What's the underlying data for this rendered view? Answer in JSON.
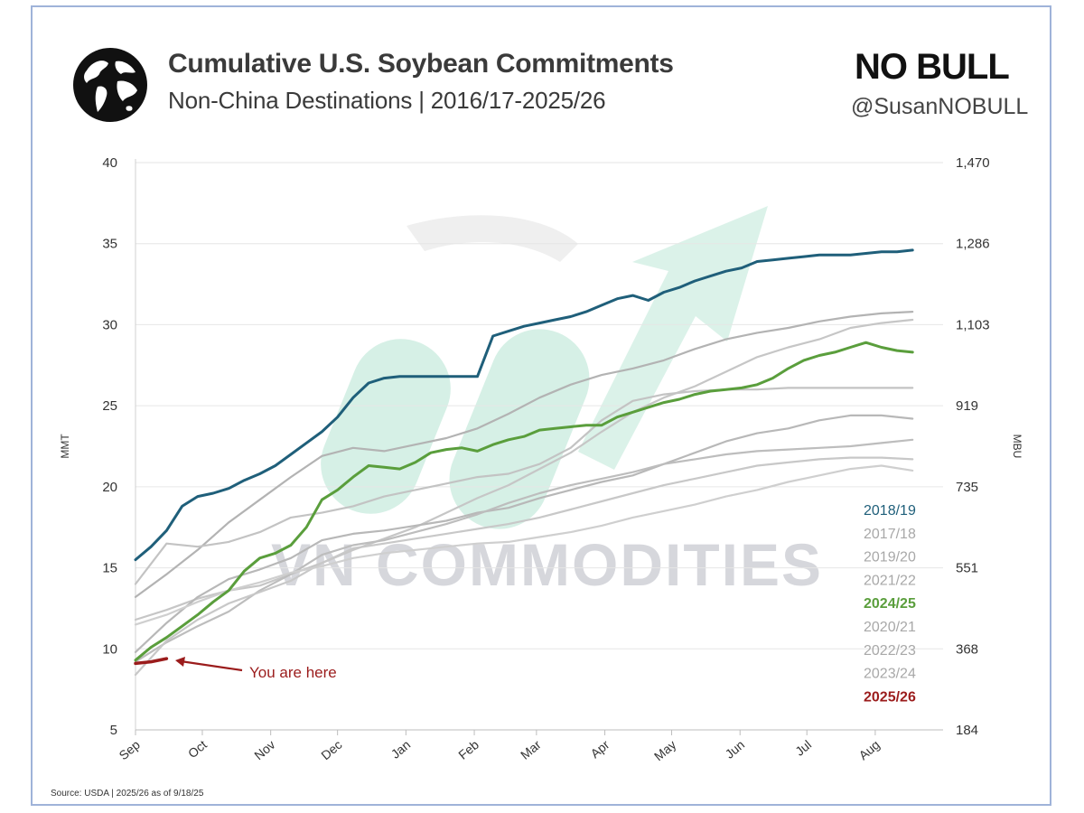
{
  "header": {
    "title": "Cumulative U.S. Soybean Commitments",
    "subtitle": "Non-China Destinations | 2016/17-2025/26",
    "logo_text": "NO BULL",
    "handle": "@SusanNOBULL"
  },
  "source": "Source: USDA | 2025/26 as of 9/18/25",
  "watermark": "VN COMMODITIES",
  "annotation": {
    "text": "You are here",
    "color": "#9b1c1c"
  },
  "chart_data": {
    "type": "line",
    "title": "Cumulative U.S. Soybean Commitments",
    "subtitle": "Non-China Destinations | 2016/17-2025/26",
    "ylabel": "MMT",
    "y2label": "MBU",
    "ylim": [
      5,
      40
    ],
    "yticks": [
      5,
      10,
      15,
      20,
      25,
      30,
      35,
      40
    ],
    "y2ticks": [
      "184",
      "368",
      "551",
      "735",
      "919",
      "1,103",
      "1,286",
      "1,470"
    ],
    "xlim": [
      0,
      51.5
    ],
    "x_month_ticks": [
      {
        "label": "Sep",
        "week": 0
      },
      {
        "label": "Oct",
        "week": 4.3
      },
      {
        "label": "Nov",
        "week": 8.7
      },
      {
        "label": "Dec",
        "week": 13
      },
      {
        "label": "Jan",
        "week": 17.4
      },
      {
        "label": "Feb",
        "week": 21.8
      },
      {
        "label": "Mar",
        "week": 25.8
      },
      {
        "label": "Apr",
        "week": 30.2
      },
      {
        "label": "May",
        "week": 34.5
      },
      {
        "label": "Jun",
        "week": 38.9
      },
      {
        "label": "Jul",
        "week": 43.2
      },
      {
        "label": "Aug",
        "week": 47.6
      }
    ],
    "legend_position": "right",
    "series": [
      {
        "name": "2017/18",
        "color": "#b3b3b3",
        "width": 2.2,
        "x": [
          0,
          2,
          4,
          6,
          8,
          10,
          12,
          14,
          16,
          18,
          20,
          22,
          24,
          26,
          28,
          30,
          32,
          34,
          36,
          38,
          40,
          42,
          44,
          46,
          48,
          50
        ],
        "values": [
          13.2,
          14.6,
          16.1,
          17.8,
          19.2,
          20.6,
          21.9,
          22.4,
          22.2,
          22.6,
          23,
          23.6,
          24.5,
          25.5,
          26.3,
          26.9,
          27.3,
          27.8,
          28.5,
          29.1,
          29.5,
          29.8,
          30.2,
          30.5,
          30.7,
          30.8
        ]
      },
      {
        "name": "2019/20",
        "color": "#c6c6c6",
        "width": 2.2,
        "x": [
          0,
          2,
          4,
          6,
          8,
          10,
          12,
          14,
          16,
          18,
          20,
          22,
          24,
          26,
          28,
          30,
          32,
          34,
          36,
          38,
          40,
          42,
          44,
          46,
          48,
          50
        ],
        "values": [
          11.8,
          12.4,
          13.1,
          13.6,
          13.9,
          14.6,
          15.3,
          16.1,
          16.8,
          17.5,
          18.4,
          19.3,
          20.1,
          21.1,
          22.1,
          23.4,
          24.6,
          25.5,
          26.2,
          27.1,
          28,
          28.6,
          29.1,
          29.8,
          30.1,
          30.3
        ]
      },
      {
        "name": "2021/22",
        "color": "#b8b8b8",
        "width": 2.2,
        "x": [
          0,
          2,
          4,
          6,
          8,
          10,
          12,
          14,
          16,
          18,
          20,
          22,
          24,
          26,
          28,
          30,
          32,
          34,
          36,
          38,
          40,
          42,
          44,
          46,
          48,
          50
        ],
        "values": [
          9.8,
          11.6,
          13.2,
          14.3,
          14.9,
          15.6,
          16.7,
          17.1,
          17.3,
          17.6,
          17.9,
          18.4,
          18.7,
          19.3,
          19.8,
          20.3,
          20.7,
          21.4,
          22.1,
          22.8,
          23.3,
          23.6,
          24.1,
          24.4,
          24.4,
          24.2
        ]
      },
      {
        "name": "2020/21",
        "color": "#c3c3c3",
        "width": 2.2,
        "x": [
          0,
          2,
          4,
          6,
          8,
          10,
          12,
          14,
          16,
          18,
          20,
          22,
          24,
          26,
          28,
          30,
          32,
          34,
          36,
          38,
          40,
          42,
          44,
          46,
          48,
          50
        ],
        "values": [
          14,
          16.5,
          16.3,
          16.6,
          17.2,
          18.1,
          18.4,
          18.8,
          19.4,
          19.8,
          20.2,
          20.6,
          20.8,
          21.4,
          22.4,
          24.1,
          25.3,
          25.7,
          25.9,
          26,
          26,
          26.1,
          26.1,
          26.1,
          26.1,
          26.1
        ]
      },
      {
        "name": "2022/23",
        "color": "#bdbdbd",
        "width": 2.2,
        "x": [
          0,
          2,
          4,
          6,
          8,
          10,
          12,
          14,
          16,
          18,
          20,
          22,
          24,
          26,
          28,
          30,
          32,
          34,
          36,
          38,
          40,
          42,
          44,
          46,
          48,
          50
        ],
        "values": [
          9.2,
          10.4,
          11.4,
          12.3,
          13.6,
          14.6,
          15.8,
          16.4,
          16.7,
          17.2,
          17.7,
          18.3,
          19,
          19.6,
          20.1,
          20.5,
          20.9,
          21.4,
          21.7,
          22,
          22.2,
          22.3,
          22.4,
          22.5,
          22.7,
          22.9
        ]
      },
      {
        "name": "2023/24",
        "color": "#c8c8c8",
        "width": 2.2,
        "x": [
          0,
          2,
          4,
          6,
          8,
          10,
          12,
          14,
          16,
          18,
          20,
          22,
          24,
          26,
          28,
          30,
          32,
          34,
          36,
          38,
          40,
          42,
          44,
          46,
          48,
          50
        ],
        "values": [
          8.4,
          10.5,
          11.8,
          12.8,
          13.5,
          14.2,
          15.3,
          16.2,
          16.5,
          16.8,
          17.1,
          17.4,
          17.7,
          18.1,
          18.6,
          19.1,
          19.6,
          20.1,
          20.5,
          20.9,
          21.3,
          21.5,
          21.7,
          21.8,
          21.8,
          21.7
        ]
      },
      {
        "name": "2016/17",
        "color": "#cfcfcf",
        "width": 2.2,
        "x": [
          0,
          2,
          4,
          6,
          8,
          10,
          12,
          14,
          16,
          18,
          20,
          22,
          24,
          26,
          28,
          30,
          32,
          34,
          36,
          38,
          40,
          42,
          44,
          46,
          48,
          50
        ],
        "values": [
          11.5,
          12.1,
          12.9,
          13.6,
          14.1,
          14.7,
          15.1,
          15.6,
          15.9,
          16.1,
          16.3,
          16.5,
          16.6,
          16.9,
          17.2,
          17.6,
          18.1,
          18.5,
          18.9,
          19.4,
          19.8,
          20.3,
          20.7,
          21.1,
          21.3,
          21
        ]
      },
      {
        "name": "2024/25",
        "color": "#5a9e3c",
        "width": 3,
        "x": [
          0,
          1,
          2,
          3,
          4,
          5,
          6,
          7,
          8,
          9,
          10,
          11,
          12,
          13,
          14,
          15,
          16,
          17,
          18,
          19,
          20,
          21,
          22,
          23,
          24,
          25,
          26,
          27,
          28,
          29,
          30,
          31,
          32,
          33,
          34,
          35,
          36,
          37,
          38,
          39,
          40,
          41,
          42,
          43,
          44,
          45,
          46,
          47,
          48,
          49,
          50
        ],
        "values": [
          9.3,
          10.1,
          10.7,
          11.4,
          12.1,
          12.9,
          13.6,
          14.8,
          15.6,
          15.9,
          16.4,
          17.5,
          19.2,
          19.8,
          20.6,
          21.3,
          21.2,
          21.1,
          21.5,
          22.1,
          22.3,
          22.4,
          22.2,
          22.6,
          22.9,
          23.1,
          23.5,
          23.6,
          23.7,
          23.8,
          23.8,
          24.3,
          24.6,
          24.9,
          25.2,
          25.4,
          25.7,
          25.9,
          26,
          26.1,
          26.3,
          26.7,
          27.3,
          27.8,
          28.1,
          28.3,
          28.6,
          28.9,
          28.6,
          28.4,
          28.3
        ]
      },
      {
        "name": "2018/19",
        "color": "#1f5f7a",
        "width": 3,
        "x": [
          0,
          1,
          2,
          3,
          4,
          5,
          6,
          7,
          8,
          9,
          10,
          11,
          12,
          13,
          14,
          15,
          16,
          17,
          18,
          19,
          20,
          21,
          22,
          23,
          24,
          25,
          26,
          27,
          28,
          29,
          30,
          31,
          32,
          33,
          34,
          35,
          36,
          37,
          38,
          39,
          40,
          41,
          42,
          43,
          44,
          45,
          46,
          47,
          48,
          49,
          50
        ],
        "values": [
          15.5,
          16.3,
          17.3,
          18.8,
          19.4,
          19.6,
          19.9,
          20.4,
          20.8,
          21.3,
          22,
          22.7,
          23.4,
          24.3,
          25.5,
          26.4,
          26.7,
          26.8,
          26.8,
          26.8,
          26.8,
          26.8,
          26.8,
          29.3,
          29.6,
          29.9,
          30.1,
          30.3,
          30.5,
          30.8,
          31.2,
          31.6,
          31.8,
          31.5,
          32,
          32.3,
          32.7,
          33,
          33.3,
          33.5,
          33.9,
          34,
          34.1,
          34.2,
          34.3,
          34.3,
          34.3,
          34.4,
          34.5,
          34.5,
          34.6
        ]
      },
      {
        "name": "2025/26",
        "color": "#9b1c1c",
        "width": 3.5,
        "x": [
          0,
          1,
          2
        ],
        "values": [
          9.1,
          9.2,
          9.4
        ]
      }
    ],
    "legend": [
      {
        "name": "2018/19",
        "color": "#1f5f7a",
        "bold": false
      },
      {
        "name": "2017/18",
        "color": "#a8a8a8",
        "bold": false
      },
      {
        "name": "2019/20",
        "color": "#a8a8a8",
        "bold": false
      },
      {
        "name": "2021/22",
        "color": "#a8a8a8",
        "bold": false
      },
      {
        "name": "2024/25",
        "color": "#5a9e3c",
        "bold": true
      },
      {
        "name": "2020/21",
        "color": "#a8a8a8",
        "bold": false
      },
      {
        "name": "2022/23",
        "color": "#a8a8a8",
        "bold": false
      },
      {
        "name": "2023/24",
        "color": "#a8a8a8",
        "bold": false
      },
      {
        "name": "2025/26",
        "color": "#9b1c1c",
        "bold": true
      }
    ]
  }
}
